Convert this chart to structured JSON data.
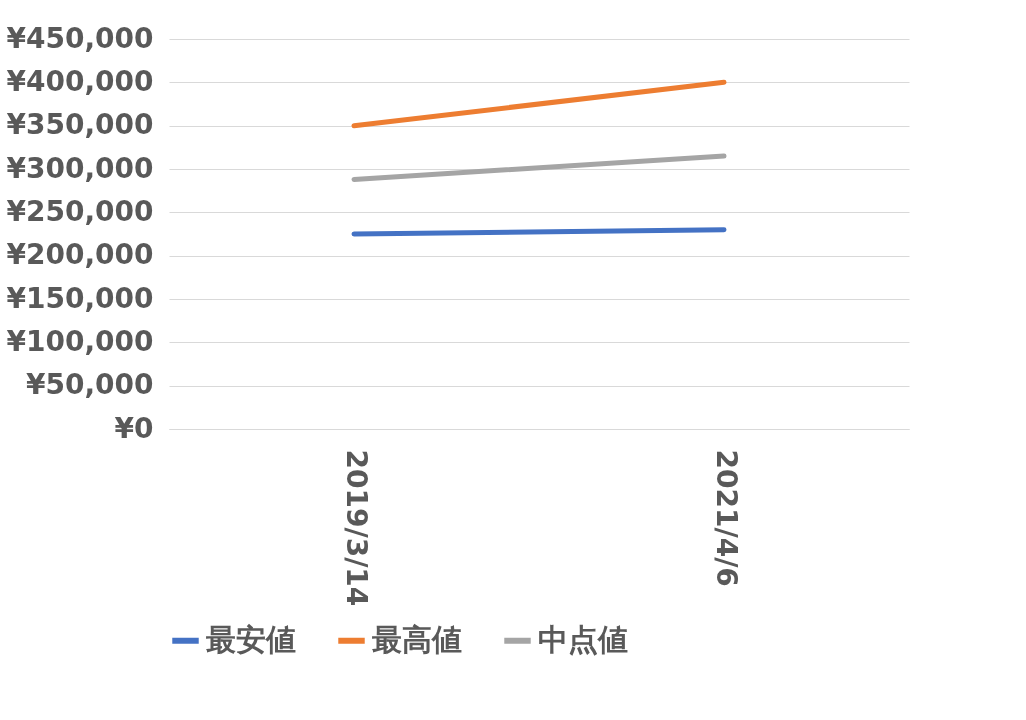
{
  "chart_data": {
    "type": "line",
    "categories": [
      "2019/3/14",
      "2021/4/6"
    ],
    "series": [
      {
        "name": "最安値",
        "color": "#4472c4",
        "values": [
          225000,
          230000
        ]
      },
      {
        "name": "最高値",
        "color": "#ed7d31",
        "values": [
          350000,
          400000
        ]
      },
      {
        "name": "中点値",
        "color": "#a5a5a5",
        "values": [
          288000,
          315000
        ]
      }
    ],
    "ylim": [
      0,
      450000
    ],
    "yticks": [
      {
        "value": 0,
        "label": "¥0"
      },
      {
        "value": 50000,
        "label": "¥50,000"
      },
      {
        "value": 100000,
        "label": "¥100,000"
      },
      {
        "value": 150000,
        "label": "¥150,000"
      },
      {
        "value": 200000,
        "label": "¥200,000"
      },
      {
        "value": 250000,
        "label": "¥250,000"
      },
      {
        "value": 300000,
        "label": "¥300,000"
      },
      {
        "value": 350000,
        "label": "¥350,000"
      },
      {
        "value": 400000,
        "label": "¥400,000"
      },
      {
        "value": 450000,
        "label": "¥450,000"
      }
    ],
    "grid": "y",
    "legend": "bottom",
    "marker": "none",
    "line_style": "solid"
  }
}
